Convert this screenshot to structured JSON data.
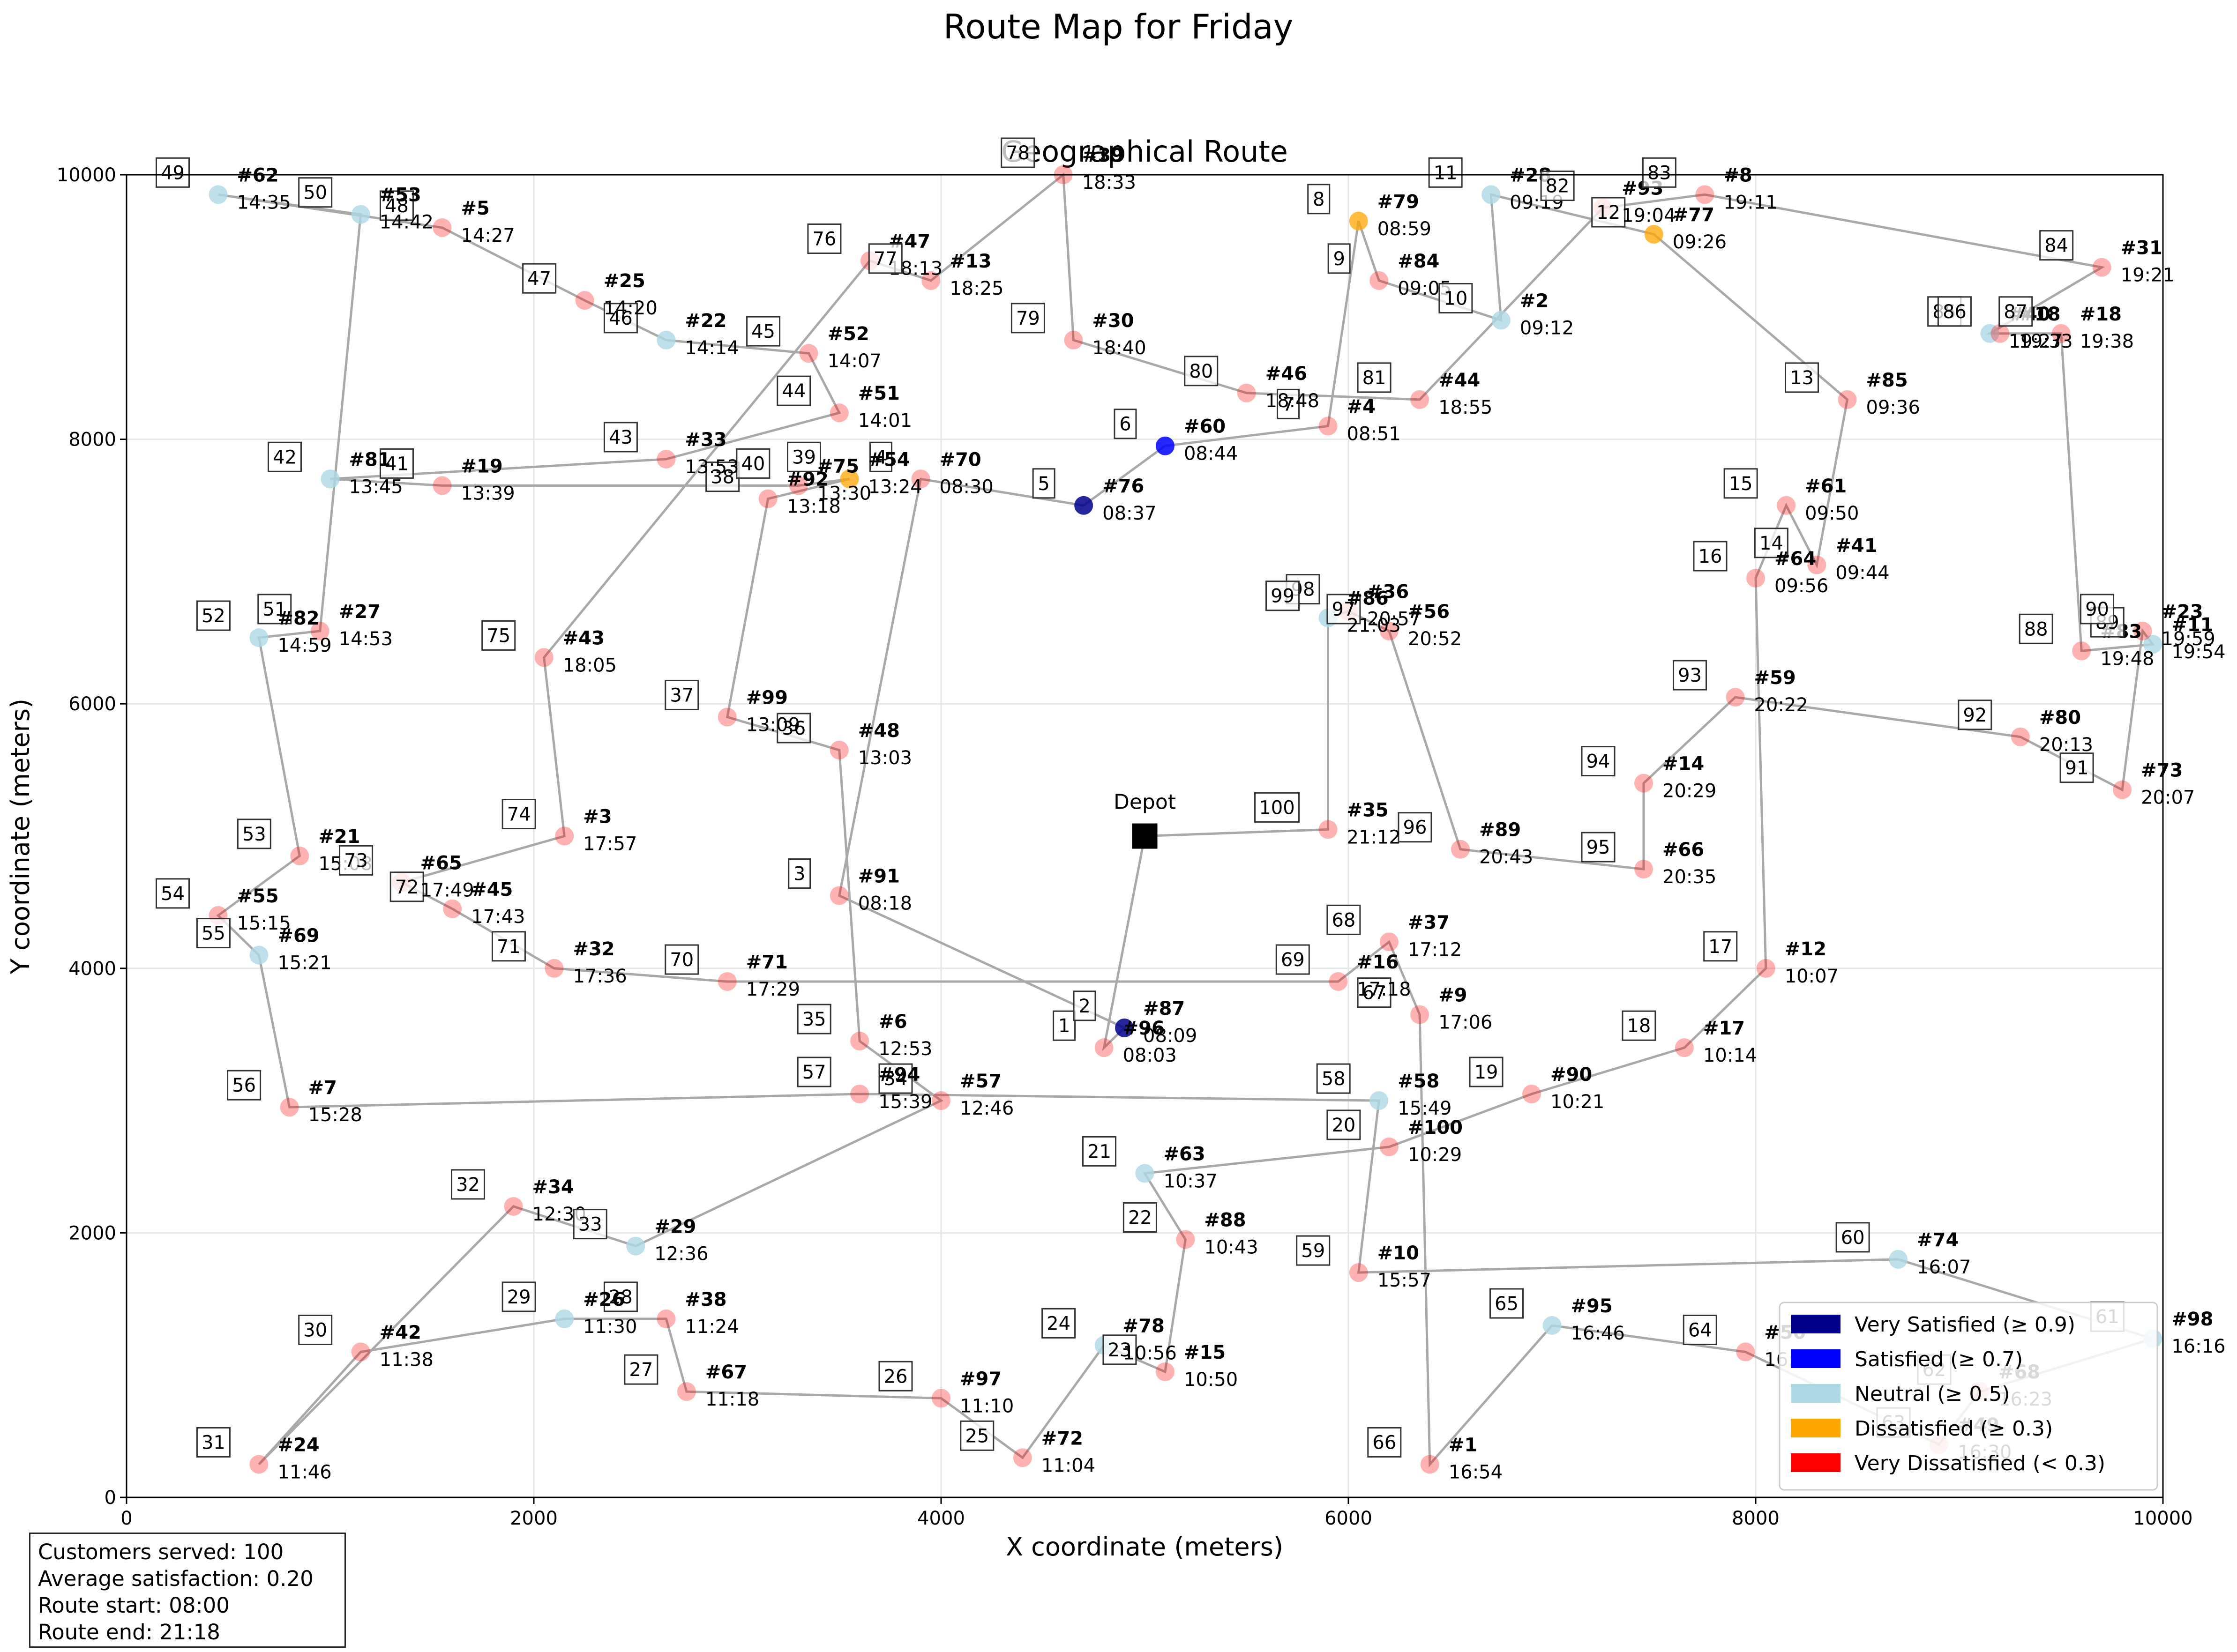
{
  "suptitle": "Route Map for Friday",
  "chart_data": {
    "type": "scatter",
    "title": "Geographical Route",
    "xlabel": "X coordinate (meters)",
    "ylabel": "Y coordinate (meters)",
    "xlim": [
      0,
      10000
    ],
    "ylim": [
      0,
      10000
    ],
    "xticks": [
      0,
      2000,
      4000,
      6000,
      8000,
      10000
    ],
    "yticks": [
      0,
      2000,
      4000,
      6000,
      8000,
      10000
    ],
    "grid": true,
    "legend_position": "lower-right",
    "depot": {
      "label": "Depot",
      "x": 5000,
      "y": 5000
    },
    "legend": [
      {
        "label": "Very Satisfied (≥ 0.9)",
        "color": "#00008b"
      },
      {
        "label": "Satisfied (≥ 0.7)",
        "color": "#0000ff"
      },
      {
        "label": "Neutral (≥ 0.5)",
        "color": "#add8e6"
      },
      {
        "label": "Dissatisfied (≥ 0.3)",
        "color": "#ffa500"
      },
      {
        "label": "Very Dissatisfied (< 0.3)",
        "color": "#ff0000"
      }
    ],
    "stops": [
      {
        "seq": 1,
        "id": "#96",
        "time": "08:03",
        "x": 4800,
        "y": 3400,
        "sat": "very_dissatisfied"
      },
      {
        "seq": 2,
        "id": "#87",
        "time": "08:09",
        "x": 4900,
        "y": 3550,
        "sat": "very_satisfied"
      },
      {
        "seq": 3,
        "id": "#91",
        "time": "08:18",
        "x": 3500,
        "y": 4550,
        "sat": "very_dissatisfied"
      },
      {
        "seq": 4,
        "id": "#70",
        "time": "08:30",
        "x": 3900,
        "y": 7700,
        "sat": "very_dissatisfied"
      },
      {
        "seq": 5,
        "id": "#76",
        "time": "08:37",
        "x": 4700,
        "y": 7500,
        "sat": "very_satisfied"
      },
      {
        "seq": 6,
        "id": "#60",
        "time": "08:44",
        "x": 5100,
        "y": 7950,
        "sat": "satisfied"
      },
      {
        "seq": 7,
        "id": "#4",
        "time": "08:51",
        "x": 5900,
        "y": 8100,
        "sat": "very_dissatisfied"
      },
      {
        "seq": 8,
        "id": "#79",
        "time": "08:59",
        "x": 6050,
        "y": 9650,
        "sat": "dissatisfied"
      },
      {
        "seq": 9,
        "id": "#84",
        "time": "09:05",
        "x": 6150,
        "y": 9200,
        "sat": "very_dissatisfied"
      },
      {
        "seq": 10,
        "id": "#2",
        "time": "09:12",
        "x": 6750,
        "y": 8900,
        "sat": "neutral"
      },
      {
        "seq": 11,
        "id": "#28",
        "time": "09:19",
        "x": 6700,
        "y": 9850,
        "sat": "neutral"
      },
      {
        "seq": 12,
        "id": "#77",
        "time": "09:26",
        "x": 7500,
        "y": 9550,
        "sat": "dissatisfied"
      },
      {
        "seq": 13,
        "id": "#85",
        "time": "09:36",
        "x": 8450,
        "y": 8300,
        "sat": "very_dissatisfied"
      },
      {
        "seq": 14,
        "id": "#41",
        "time": "09:44",
        "x": 8300,
        "y": 7050,
        "sat": "very_dissatisfied"
      },
      {
        "seq": 15,
        "id": "#61",
        "time": "09:50",
        "x": 8150,
        "y": 7500,
        "sat": "very_dissatisfied"
      },
      {
        "seq": 16,
        "id": "#64",
        "time": "09:56",
        "x": 8000,
        "y": 6950,
        "sat": "very_dissatisfied"
      },
      {
        "seq": 17,
        "id": "#12",
        "time": "10:07",
        "x": 8050,
        "y": 4000,
        "sat": "very_dissatisfied"
      },
      {
        "seq": 18,
        "id": "#17",
        "time": "10:14",
        "x": 7650,
        "y": 3400,
        "sat": "very_dissatisfied"
      },
      {
        "seq": 19,
        "id": "#90",
        "time": "10:21",
        "x": 6900,
        "y": 3050,
        "sat": "very_dissatisfied"
      },
      {
        "seq": 20,
        "id": "#100",
        "time": "10:29",
        "x": 6200,
        "y": 2650,
        "sat": "very_dissatisfied"
      },
      {
        "seq": 21,
        "id": "#63",
        "time": "10:37",
        "x": 5000,
        "y": 2450,
        "sat": "neutral"
      },
      {
        "seq": 22,
        "id": "#88",
        "time": "10:43",
        "x": 5200,
        "y": 1950,
        "sat": "very_dissatisfied"
      },
      {
        "seq": 23,
        "id": "#15",
        "time": "10:50",
        "x": 5100,
        "y": 950,
        "sat": "very_dissatisfied"
      },
      {
        "seq": 24,
        "id": "#78",
        "time": "10:56",
        "x": 4800,
        "y": 1150,
        "sat": "neutral"
      },
      {
        "seq": 25,
        "id": "#72",
        "time": "11:04",
        "x": 4400,
        "y": 300,
        "sat": "very_dissatisfied"
      },
      {
        "seq": 26,
        "id": "#97",
        "time": "11:10",
        "x": 4000,
        "y": 750,
        "sat": "very_dissatisfied"
      },
      {
        "seq": 27,
        "id": "#67",
        "time": "11:18",
        "x": 2750,
        "y": 800,
        "sat": "very_dissatisfied"
      },
      {
        "seq": 28,
        "id": "#38",
        "time": "11:24",
        "x": 2650,
        "y": 1350,
        "sat": "very_dissatisfied"
      },
      {
        "seq": 29,
        "id": "#26",
        "time": "11:30",
        "x": 2150,
        "y": 1350,
        "sat": "neutral"
      },
      {
        "seq": 30,
        "id": "#42",
        "time": "11:38",
        "x": 1150,
        "y": 1100,
        "sat": "very_dissatisfied"
      },
      {
        "seq": 31,
        "id": "#24",
        "time": "11:46",
        "x": 650,
        "y": 250,
        "sat": "very_dissatisfied"
      },
      {
        "seq": 32,
        "id": "#34",
        "time": "12:30",
        "x": 1900,
        "y": 2200,
        "sat": "very_dissatisfied"
      },
      {
        "seq": 33,
        "id": "#29",
        "time": "12:36",
        "x": 2500,
        "y": 1900,
        "sat": "neutral"
      },
      {
        "seq": 34,
        "id": "#57",
        "time": "12:46",
        "x": 4000,
        "y": 3000,
        "sat": "very_dissatisfied"
      },
      {
        "seq": 35,
        "id": "#6",
        "time": "12:53",
        "x": 3600,
        "y": 3450,
        "sat": "very_dissatisfied"
      },
      {
        "seq": 36,
        "id": "#48",
        "time": "13:03",
        "x": 3500,
        "y": 5650,
        "sat": "very_dissatisfied"
      },
      {
        "seq": 37,
        "id": "#99",
        "time": "13:09",
        "x": 2950,
        "y": 5900,
        "sat": "very_dissatisfied"
      },
      {
        "seq": 38,
        "id": "#92",
        "time": "13:18",
        "x": 3150,
        "y": 7550,
        "sat": "very_dissatisfied"
      },
      {
        "seq": 39,
        "id": "#54",
        "time": "13:24",
        "x": 3550,
        "y": 7700,
        "sat": "dissatisfied"
      },
      {
        "seq": 40,
        "id": "#75",
        "time": "13:30",
        "x": 3300,
        "y": 7650,
        "sat": "very_dissatisfied"
      },
      {
        "seq": 41,
        "id": "#19",
        "time": "13:39",
        "x": 1550,
        "y": 7650,
        "sat": "very_dissatisfied"
      },
      {
        "seq": 42,
        "id": "#81",
        "time": "13:45",
        "x": 1000,
        "y": 7700,
        "sat": "neutral"
      },
      {
        "seq": 43,
        "id": "#33",
        "time": "13:53",
        "x": 2650,
        "y": 7850,
        "sat": "very_dissatisfied"
      },
      {
        "seq": 44,
        "id": "#51",
        "time": "14:01",
        "x": 3500,
        "y": 8200,
        "sat": "very_dissatisfied"
      },
      {
        "seq": 45,
        "id": "#52",
        "time": "14:07",
        "x": 3350,
        "y": 8650,
        "sat": "very_dissatisfied"
      },
      {
        "seq": 46,
        "id": "#22",
        "time": "14:14",
        "x": 2650,
        "y": 8750,
        "sat": "neutral"
      },
      {
        "seq": 47,
        "id": "#25",
        "time": "14:20",
        "x": 2250,
        "y": 9050,
        "sat": "very_dissatisfied"
      },
      {
        "seq": 48,
        "id": "#5",
        "time": "14:27",
        "x": 1550,
        "y": 9600,
        "sat": "very_dissatisfied"
      },
      {
        "seq": 49,
        "id": "#62",
        "time": "14:35",
        "x": 450,
        "y": 9850,
        "sat": "neutral"
      },
      {
        "seq": 50,
        "id": "#53",
        "time": "14:42",
        "x": 1150,
        "y": 9700,
        "sat": "neutral"
      },
      {
        "seq": 51,
        "id": "#27",
        "time": "14:53",
        "x": 950,
        "y": 6550,
        "sat": "very_dissatisfied"
      },
      {
        "seq": 52,
        "id": "#82",
        "time": "14:59",
        "x": 650,
        "y": 6500,
        "sat": "neutral"
      },
      {
        "seq": 53,
        "id": "#21",
        "time": "15:08",
        "x": 850,
        "y": 4850,
        "sat": "very_dissatisfied"
      },
      {
        "seq": 54,
        "id": "#55",
        "time": "15:15",
        "x": 450,
        "y": 4400,
        "sat": "very_dissatisfied"
      },
      {
        "seq": 55,
        "id": "#69",
        "time": "15:21",
        "x": 650,
        "y": 4100,
        "sat": "neutral"
      },
      {
        "seq": 56,
        "id": "#7",
        "time": "15:28",
        "x": 800,
        "y": 2950,
        "sat": "very_dissatisfied"
      },
      {
        "seq": 57,
        "id": "#94",
        "time": "15:39",
        "x": 3600,
        "y": 3050,
        "sat": "very_dissatisfied"
      },
      {
        "seq": 58,
        "id": "#58",
        "time": "15:49",
        "x": 6150,
        "y": 3000,
        "sat": "neutral"
      },
      {
        "seq": 59,
        "id": "#10",
        "time": "15:57",
        "x": 6050,
        "y": 1700,
        "sat": "very_dissatisfied"
      },
      {
        "seq": 60,
        "id": "#74",
        "time": "16:07",
        "x": 8700,
        "y": 1800,
        "sat": "neutral"
      },
      {
        "seq": 61,
        "id": "#98",
        "time": "16:16",
        "x": 9950,
        "y": 1200,
        "sat": "neutral"
      },
      {
        "seq": 62,
        "id": "#68",
        "time": "16:23",
        "x": 9100,
        "y": 800,
        "sat": "very_dissatisfied"
      },
      {
        "seq": 63,
        "id": "#49",
        "time": "16:30",
        "x": 8900,
        "y": 400,
        "sat": "very_dissatisfied"
      },
      {
        "seq": 64,
        "id": "#50",
        "time": "16:39",
        "x": 7950,
        "y": 1100,
        "sat": "very_dissatisfied"
      },
      {
        "seq": 65,
        "id": "#95",
        "time": "16:46",
        "x": 7000,
        "y": 1300,
        "sat": "neutral"
      },
      {
        "seq": 66,
        "id": "#1",
        "time": "16:54",
        "x": 6400,
        "y": 250,
        "sat": "very_dissatisfied"
      },
      {
        "seq": 67,
        "id": "#9",
        "time": "17:06",
        "x": 6350,
        "y": 3650,
        "sat": "very_dissatisfied"
      },
      {
        "seq": 68,
        "id": "#37",
        "time": "17:12",
        "x": 6200,
        "y": 4200,
        "sat": "very_dissatisfied"
      },
      {
        "seq": 69,
        "id": "#16",
        "time": "17:18",
        "x": 5950,
        "y": 3900,
        "sat": "very_dissatisfied"
      },
      {
        "seq": 70,
        "id": "#71",
        "time": "17:29",
        "x": 2950,
        "y": 3900,
        "sat": "very_dissatisfied"
      },
      {
        "seq": 71,
        "id": "#32",
        "time": "17:36",
        "x": 2100,
        "y": 4000,
        "sat": "very_dissatisfied"
      },
      {
        "seq": 72,
        "id": "#45",
        "time": "17:43",
        "x": 1600,
        "y": 4450,
        "sat": "very_dissatisfied"
      },
      {
        "seq": 73,
        "id": "#65",
        "time": "17:49",
        "x": 1350,
        "y": 4650,
        "sat": "very_dissatisfied"
      },
      {
        "seq": 74,
        "id": "#3",
        "time": "17:57",
        "x": 2150,
        "y": 5000,
        "sat": "very_dissatisfied"
      },
      {
        "seq": 75,
        "id": "#43",
        "time": "18:05",
        "x": 2050,
        "y": 6350,
        "sat": "very_dissatisfied"
      },
      {
        "seq": 76,
        "id": "#47",
        "time": "18:13",
        "x": 3650,
        "y": 9350,
        "sat": "very_dissatisfied"
      },
      {
        "seq": 77,
        "id": "#13",
        "time": "18:25",
        "x": 3950,
        "y": 9200,
        "sat": "very_dissatisfied"
      },
      {
        "seq": 78,
        "id": "#39",
        "time": "18:33",
        "x": 4600,
        "y": 10000,
        "sat": "very_dissatisfied"
      },
      {
        "seq": 79,
        "id": "#30",
        "time": "18:40",
        "x": 4650,
        "y": 8750,
        "sat": "very_dissatisfied"
      },
      {
        "seq": 80,
        "id": "#46",
        "time": "18:48",
        "x": 5500,
        "y": 8350,
        "sat": "very_dissatisfied"
      },
      {
        "seq": 81,
        "id": "#44",
        "time": "18:55",
        "x": 6350,
        "y": 8300,
        "sat": "very_dissatisfied"
      },
      {
        "seq": 82,
        "id": "#93",
        "time": "19:04",
        "x": 7250,
        "y": 9750,
        "sat": "very_dissatisfied"
      },
      {
        "seq": 83,
        "id": "#8",
        "time": "19:11",
        "x": 7750,
        "y": 9850,
        "sat": "very_dissatisfied"
      },
      {
        "seq": 84,
        "id": "#31",
        "time": "19:21",
        "x": 9700,
        "y": 9300,
        "sat": "very_dissatisfied"
      },
      {
        "seq": 85,
        "id": "#40",
        "time": "19:27",
        "x": 9150,
        "y": 8800,
        "sat": "neutral"
      },
      {
        "seq": 86,
        "id": "#18",
        "time": "19:33",
        "x": 9200,
        "y": 8800,
        "sat": "very_dissatisfied"
      },
      {
        "seq": 87,
        "id": "#18",
        "time": "19:38",
        "x": 9500,
        "y": 8800,
        "sat": "very_dissatisfied"
      },
      {
        "seq": 88,
        "id": "#83",
        "time": "19:48",
        "x": 9600,
        "y": 6400,
        "sat": "very_dissatisfied"
      },
      {
        "seq": 89,
        "id": "#11",
        "time": "19:54",
        "x": 9950,
        "y": 6450,
        "sat": "neutral"
      },
      {
        "seq": 90,
        "id": "#23",
        "time": "19:59",
        "x": 9900,
        "y": 6550,
        "sat": "very_dissatisfied"
      },
      {
        "seq": 91,
        "id": "#73",
        "time": "20:07",
        "x": 9800,
        "y": 5350,
        "sat": "very_dissatisfied"
      },
      {
        "seq": 92,
        "id": "#80",
        "time": "20:13",
        "x": 9300,
        "y": 5750,
        "sat": "very_dissatisfied"
      },
      {
        "seq": 93,
        "id": "#59",
        "time": "20:22",
        "x": 7900,
        "y": 6050,
        "sat": "very_dissatisfied"
      },
      {
        "seq": 94,
        "id": "#14",
        "time": "20:29",
        "x": 7450,
        "y": 5400,
        "sat": "very_dissatisfied"
      },
      {
        "seq": 95,
        "id": "#66",
        "time": "20:35",
        "x": 7450,
        "y": 4750,
        "sat": "very_dissatisfied"
      },
      {
        "seq": 96,
        "id": "#89",
        "time": "20:43",
        "x": 6550,
        "y": 4900,
        "sat": "very_dissatisfied"
      },
      {
        "seq": 97,
        "id": "#56",
        "time": "20:52",
        "x": 6200,
        "y": 6550,
        "sat": "very_dissatisfied"
      },
      {
        "seq": 98,
        "id": "#36",
        "time": "20:57",
        "x": 6000,
        "y": 6700,
        "sat": "very_dissatisfied"
      },
      {
        "seq": 99,
        "id": "#86",
        "time": "21:03",
        "x": 5900,
        "y": 6650,
        "sat": "neutral"
      },
      {
        "seq": 100,
        "id": "#35",
        "time": "21:12",
        "x": 5900,
        "y": 5050,
        "sat": "very_dissatisfied"
      }
    ]
  },
  "info": {
    "customers": "Customers served: 100",
    "satisfaction": "Average satisfaction: 0.20",
    "start": "Route start: 08:00",
    "end": "Route end: 21:18"
  }
}
